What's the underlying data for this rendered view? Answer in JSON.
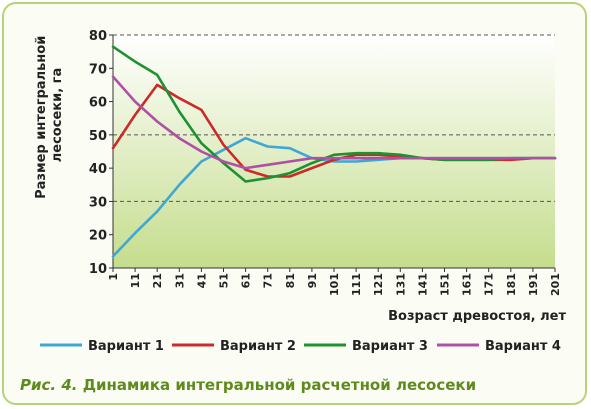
{
  "chart_data": {
    "type": "line",
    "xlabel": "Возраст древостоя, лет",
    "ylabel_lines": [
      "Размер интегральной",
      "лесосеки, га"
    ],
    "x": [
      1,
      11,
      21,
      31,
      41,
      51,
      61,
      71,
      81,
      91,
      101,
      111,
      121,
      131,
      141,
      151,
      161,
      171,
      181,
      191,
      201
    ],
    "xticks": [
      "1",
      "11",
      "21",
      "31",
      "41",
      "51",
      "61",
      "71",
      "81",
      "91",
      "101",
      "111",
      "121",
      "131",
      "141",
      "151",
      "161",
      "171",
      "181",
      "191",
      "201"
    ],
    "yticks": [
      "10",
      "20",
      "30",
      "40",
      "50",
      "60",
      "70",
      "80"
    ],
    "ylim": [
      10,
      80
    ],
    "xlim": [
      1,
      201
    ],
    "grid": "dashed horizontal at 30, 50 and 80",
    "legend_position": "bottom",
    "series": [
      {
        "name": "Вариант 1",
        "color": "#3fa7d6",
        "values": [
          13.5,
          20.5,
          27,
          35,
          42,
          45.5,
          49,
          46.5,
          46,
          43,
          42,
          42,
          42.5,
          43,
          43,
          43,
          43,
          43,
          43,
          43,
          43
        ]
      },
      {
        "name": "Вариант 2",
        "color": "#cc2a2a",
        "values": [
          46,
          56,
          65,
          61,
          57.5,
          47,
          39.5,
          37.5,
          37.5,
          40,
          42.5,
          44,
          44,
          43.5,
          43,
          42.5,
          42.5,
          42.5,
          42.5,
          43,
          43
        ]
      },
      {
        "name": "Вариант 3",
        "color": "#1e9130",
        "values": [
          76.5,
          72,
          68,
          57,
          47.5,
          41.5,
          36,
          37,
          38.5,
          41.5,
          44,
          44.5,
          44.5,
          44,
          43,
          42.5,
          42.5,
          42.5,
          43,
          43,
          43
        ]
      },
      {
        "name": "Вариант 4",
        "color": "#b04fa6",
        "values": [
          67.5,
          60,
          54,
          49,
          45,
          42,
          40,
          41,
          42,
          43,
          43,
          43,
          43,
          43,
          43,
          43,
          43,
          43,
          43,
          43,
          43
        ]
      }
    ]
  },
  "caption": {
    "prefix": "Рис. 4.",
    "text": "Динамика интегральной расчетной лесосеки"
  }
}
